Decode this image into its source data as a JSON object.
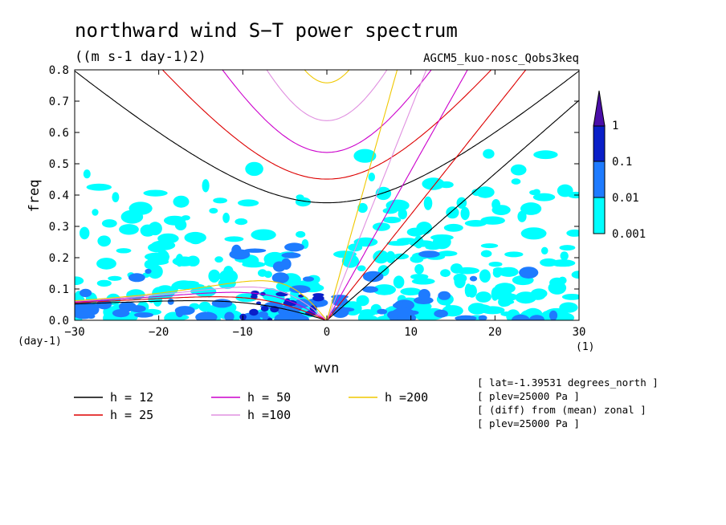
{
  "chart_data": {
    "type": "heatmap",
    "title": "northward wind S−T power spectrum",
    "units": "((m s-1 day-1)2)",
    "run_label": "AGCM5_kuo-nosc_Qobs3keq",
    "xlabel": "wvn",
    "ylabel": "freq",
    "x_unit": "(1)",
    "y_unit": "(day-1)",
    "xlim": [
      -30,
      30
    ],
    "ylim": [
      0,
      0.8
    ],
    "xticks": [
      -30,
      -20,
      -10,
      0,
      10,
      20,
      30
    ],
    "xtick_labels": [
      "−30",
      "−20",
      "−10",
      "0",
      "10",
      "20",
      "30"
    ],
    "yticks": [
      0.0,
      0.1,
      0.2,
      0.3,
      0.4,
      0.5,
      0.6,
      0.7,
      0.8
    ],
    "ytick_labels": [
      "0.0",
      "0.1",
      "0.2",
      "0.3",
      "0.4",
      "0.5",
      "0.6",
      "0.7",
      "0.8"
    ],
    "colorbar": {
      "levels": [
        0.001,
        0.01,
        0.1,
        1
      ],
      "labels": [
        "0.001",
        "0.01",
        "0.1",
        "1"
      ],
      "colors": [
        "#00ffff",
        "#1e7bff",
        "#0a1fc8",
        "#4a0ea8"
      ]
    },
    "series": [
      {
        "name": "h = 12",
        "h": 12,
        "color": "#000000"
      },
      {
        "name": "h = 25",
        "h": 25,
        "color": "#dd0000"
      },
      {
        "name": "h = 50",
        "h": 50,
        "color": "#cc00cc"
      },
      {
        "name": "h =100",
        "h": 100,
        "color": "#e090e0"
      },
      {
        "name": "h =200",
        "h": 200,
        "color": "#f0c800"
      }
    ],
    "info_lines": [
      "[ lat=-1.39531 degrees_north ]",
      "[ plev=25000 Pa ]",
      "[ (diff) from (mean) zonal ]",
      "[ plev=25000 Pa ]"
    ]
  }
}
